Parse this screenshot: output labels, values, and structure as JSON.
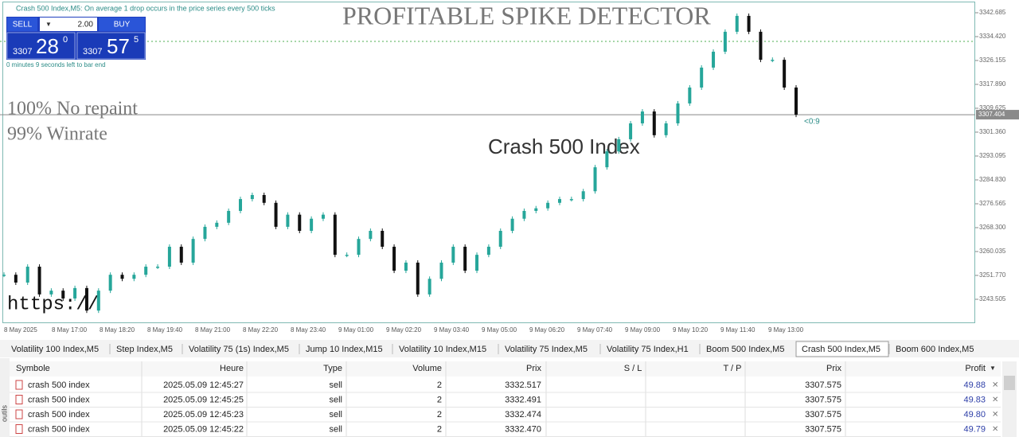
{
  "info_line": "Crash 500 Index,M5:  On average 1 drop occurs in the price series every 500 ticks",
  "trade_panel": {
    "sell": "SELL",
    "lot": "2.00",
    "buy": "BUY",
    "sell_price": {
      "big_figure": "3307",
      "pips": "28",
      "point": "0"
    },
    "buy_price": {
      "big_figure": "3307",
      "pips": "57",
      "point": "5"
    },
    "timer": "0 minutes 9 seconds left to bar end"
  },
  "overlay": {
    "title": "PROFITABLE SPIKE DETECTOR",
    "claim_1": "100% No repaint",
    "claim_2": "99% Winrate",
    "symbol_watermark": "Crash 500 Index",
    "url": "https://",
    "bar_countdown": "<0:9"
  },
  "chart_data": {
    "type": "candlestick",
    "x_labels": [
      "8 May 2025",
      "8 May 17:00",
      "8 May 18:20",
      "8 May 19:40",
      "8 May 21:00",
      "8 May 22:20",
      "8 May 23:40",
      "9 May 01:00",
      "9 May 02:20",
      "9 May 03:40",
      "9 May 05:00",
      "9 May 06:20",
      "9 May 07:40",
      "9 May 09:00",
      "9 May 10:20",
      "9 May 11:40",
      "9 May 13:00"
    ],
    "closes": [
      3252.0,
      3249.3,
      3254.8,
      3245.2,
      3246.5,
      3243.8,
      3247.4,
      3239.6,
      3246.5,
      3252.0,
      3250.6,
      3252.0,
      3254.8,
      3254.8,
      3261.7,
      3256.2,
      3264.4,
      3268.6,
      3270.0,
      3274.1,
      3278.2,
      3279.6,
      3276.9,
      3268.6,
      3272.8,
      3267.2,
      3271.4,
      3272.8,
      3258.9,
      3258.9,
      3264.4,
      3267.2,
      3261.7,
      3253.4,
      3256.2,
      3245.2,
      3250.6,
      3256.2,
      3261.7,
      3253.4,
      3258.9,
      3261.7,
      3267.2,
      3271.4,
      3274.1,
      3275.0,
      3276.9,
      3278.2,
      3278.2,
      3280.9,
      3289.2,
      3294.7,
      3298.9,
      3304.4,
      3308.5,
      3300.3,
      3304.4,
      3311.3,
      3316.8,
      3323.7,
      3329.2,
      3336.1,
      3341.6,
      3336.1,
      3326.4,
      3326.4,
      3316.8,
      3307.4
    ],
    "up_color": "#26a69a",
    "down_color": "#111111",
    "ylim": [
      3235.52,
      3346.54
    ],
    "yticks": [
      3342.685,
      {
        "value": 3334.42,
        "label": "3334.420"
      },
      3326.155,
      {
        "value": 3317.89,
        "label": "3317.890"
      },
      3309.625,
      {
        "value": 3301.36,
        "label": "3301.360"
      },
      3293.095,
      {
        "value": 3284.83,
        "label": "3284.830"
      },
      3276.565,
      {
        "value": 3268.3,
        "label": "3268.300"
      },
      3260.035,
      {
        "value": 3251.77,
        "label": "3251.770"
      },
      3243.505
    ],
    "price_line": {
      "value": 3307.404,
      "label": "3307.404"
    }
  },
  "tabs": [
    "Volatility 100 Index,M5",
    "Step Index,M5",
    "Volatility 75 (1s) Index,M5",
    "Jump 10 Index,M15",
    "Volatility 10 Index,M15",
    "Volatility 75 Index,M5",
    "Volatility 75 Index,H1",
    "Boom 500 Index,M5",
    "Crash 500 Index,M5",
    "Boom 600 Index,M5"
  ],
  "table": {
    "columns": [
      "Symbole",
      "Heure",
      "Type",
      "Volume",
      "Prix",
      "S / L",
      "T / P",
      "Prix",
      "Profit"
    ],
    "rows": [
      {
        "symbol": "crash 500 index",
        "time": "2025.05.09 12:45:27",
        "type": "sell",
        "volume": "2",
        "open_price": "3332.517",
        "price": "3307.575",
        "profit": "49.88"
      },
      {
        "symbol": "crash 500 index",
        "time": "2025.05.09 12:45:25",
        "type": "sell",
        "volume": "2",
        "open_price": "3332.491",
        "price": "3307.575",
        "profit": "49.83"
      },
      {
        "symbol": "crash 500 index",
        "time": "2025.05.09 12:45:23",
        "type": "sell",
        "volume": "2",
        "open_price": "3332.474",
        "price": "3307.575",
        "profit": "49.80"
      },
      {
        "symbol": "crash 500 index",
        "time": "2025.05.09 12:45:22",
        "type": "sell",
        "volume": "2",
        "open_price": "3332.470",
        "price": "3307.575",
        "profit": "49.79"
      }
    ]
  },
  "toolbox_label": "outils"
}
